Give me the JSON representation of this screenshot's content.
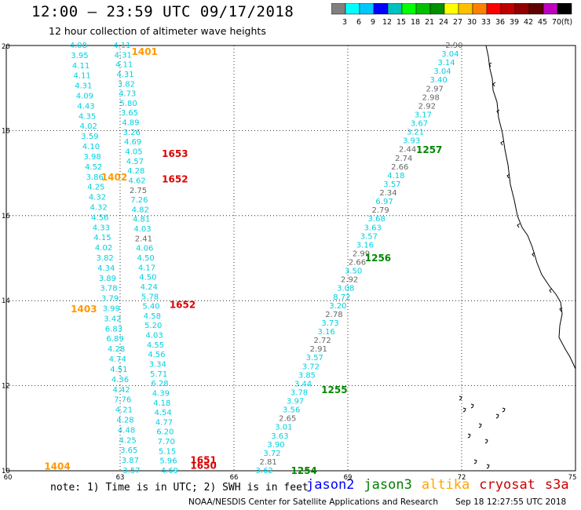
{
  "header": {
    "title": "12:00 – 23:59 UTC 09/17/2018",
    "subtitle": "12 hour collection of altimeter wave heights"
  },
  "colorbar": {
    "labels": [
      "3",
      "6",
      "9",
      "12",
      "15",
      "18",
      "21",
      "24",
      "27",
      "30",
      "33",
      "36",
      "39",
      "42",
      "45",
      "70",
      "(ft)"
    ],
    "colors": [
      "#808080",
      "#00ffff",
      "#00c8ff",
      "#0000ff",
      "#00c0c0",
      "#00ff00",
      "#00c000",
      "#009000",
      "#ffff00",
      "#ffc000",
      "#ff8000",
      "#ff0000",
      "#c00000",
      "#900000",
      "#600000",
      "#c000c0",
      "#000000"
    ]
  },
  "footer": {
    "note": "note:  1) Time is in UTC; 2) SWH is in feet",
    "legend": [
      {
        "name": "jason2",
        "color": "#0000ff"
      },
      {
        "name": "jason3",
        "color": "#008000"
      },
      {
        "name": "altika",
        "color": "#ffa500"
      },
      {
        "name": "cryosat",
        "color": "#cc0000"
      },
      {
        "name": "s3a",
        "color": "#cc0000"
      }
    ],
    "source": "NOAA/NESDIS Center for Satellite Applications and Research",
    "timestamp": "Sep 18 12:27:55 UTC 2018"
  },
  "chart_data": {
    "type": "scatter",
    "title": "12:00 – 23:59 UTC 09/17/2018",
    "subtitle": "12 hour collection of altimeter wave heights",
    "x_ticks": [
      "60",
      "63",
      "66",
      "69",
      "72",
      "75"
    ],
    "y_ticks": [
      "10",
      "12",
      "14",
      "16",
      "18",
      "20"
    ],
    "xlim": [
      60,
      75
    ],
    "ylim": [
      10,
      20
    ],
    "colors": {
      "gray": "#666666",
      "cyan": "#00d0e0",
      "orange": "#ff9900",
      "red": "#dd0000",
      "green": "#008800"
    },
    "tracks": [
      {
        "label_color": "cyan",
        "x_start": 63.3,
        "y_start": 10.0,
        "x_end": 61.9,
        "y_end": 20.0,
        "values": [
          "3.57",
          "3.87",
          "3.65",
          "4.25",
          "4.48",
          "4.28",
          "4.21",
          "7.76",
          "4.42",
          "4.36",
          "4.51",
          "4.74",
          "4.28",
          "6.89",
          "6.83",
          "3.42",
          "3.99",
          "3.79",
          "3.78",
          "3.89",
          "4.34",
          "3.82",
          "4.02",
          "4.15",
          "4.33",
          "4.56",
          "4.32",
          "4.32",
          "4.25",
          "3.86",
          "4.52",
          "3.98",
          "4.10",
          "3.59",
          "4.02",
          "4.35",
          "4.43",
          "4.09",
          "4.31",
          "4.11",
          "4.11",
          "3.95",
          "4.08"
        ],
        "gray_indices": []
      },
      {
        "label_color": "cyan",
        "x_start": 64.3,
        "y_start": 10.0,
        "x_end": 63.05,
        "y_end": 20.0,
        "values": [
          "4.69",
          "5.96",
          "5.15",
          "7.70",
          "6.20",
          "4.77",
          "4.54",
          "4.18",
          "4.39",
          "6.28",
          "5.71",
          "3.34",
          "4.56",
          "4.55",
          "4.03",
          "5.20",
          "4.58",
          "5.40",
          "5.78",
          "4.24",
          "4.50",
          "4.17",
          "4.50",
          "4.06",
          "2.41",
          "4.03",
          "4.81",
          "4.82",
          "7.26",
          "2.75",
          "4.62",
          "4.28",
          "4.57",
          "4.05",
          "4.69",
          "3.26",
          "4.89",
          "3.65",
          "5.80",
          "4.73",
          "3.82",
          "4.31",
          "4.11",
          "4.31",
          "4.11"
        ],
        "gray_indices": [
          24,
          29
        ]
      },
      {
        "label_color": "cyan",
        "x_start": 66.8,
        "y_start": 10.0,
        "x_end": 71.8,
        "y_end": 20.0,
        "values": [
          "3.62",
          "2.81",
          "3.72",
          "3.90",
          "3.63",
          "3.01",
          "2.65",
          "3.56",
          "3.97",
          "3.78",
          "3.44",
          "3.85",
          "3.72",
          "3.57",
          "2.91",
          "2.72",
          "3.16",
          "3.73",
          "2.78",
          "3.20",
          "8.72",
          "3.08",
          "2.92",
          "3.50",
          "2.66",
          "2.99",
          "3.16",
          "3.57",
          "3.63",
          "3.68",
          "2.79",
          "6.97",
          "2.34",
          "3.57",
          "4.18",
          "2.66",
          "2.74",
          "2.44",
          "3.93",
          "3.21",
          "3.67",
          "3.17",
          "2.92",
          "2.98",
          "2.97",
          "3.40",
          "3.04",
          "3.14",
          "3.04",
          "2.90"
        ],
        "gray_indices": [
          1,
          6,
          14,
          15,
          18,
          22,
          24,
          25,
          30,
          32,
          35,
          36,
          37,
          42,
          43,
          44,
          49
        ]
      }
    ],
    "time_labels": [
      {
        "text": "1401",
        "x": 63.3,
        "y": 19.85,
        "color": "orange"
      },
      {
        "text": "1653",
        "x": 64.1,
        "y": 17.45,
        "color": "red"
      },
      {
        "text": "1402",
        "x": 62.5,
        "y": 16.9,
        "color": "orange"
      },
      {
        "text": "1652",
        "x": 64.1,
        "y": 16.85,
        "color": "red"
      },
      {
        "text": "1257",
        "x": 70.8,
        "y": 17.55,
        "color": "green"
      },
      {
        "text": "1256",
        "x": 69.45,
        "y": 15.0,
        "color": "green"
      },
      {
        "text": "1403",
        "x": 61.7,
        "y": 13.8,
        "color": "orange"
      },
      {
        "text": "1652",
        "x": 64.3,
        "y": 13.9,
        "color": "red"
      },
      {
        "text": "1255",
        "x": 68.3,
        "y": 11.9,
        "color": "green"
      },
      {
        "text": "1404",
        "x": 61.0,
        "y": 10.1,
        "color": "orange"
      },
      {
        "text": "1651",
        "x": 64.85,
        "y": 10.25,
        "color": "red"
      },
      {
        "text": "1650",
        "x": 64.85,
        "y": 10.12,
        "color": "red"
      },
      {
        "text": "1254",
        "x": 67.5,
        "y": 10.0,
        "color": "green"
      }
    ],
    "grid": "dotted"
  }
}
